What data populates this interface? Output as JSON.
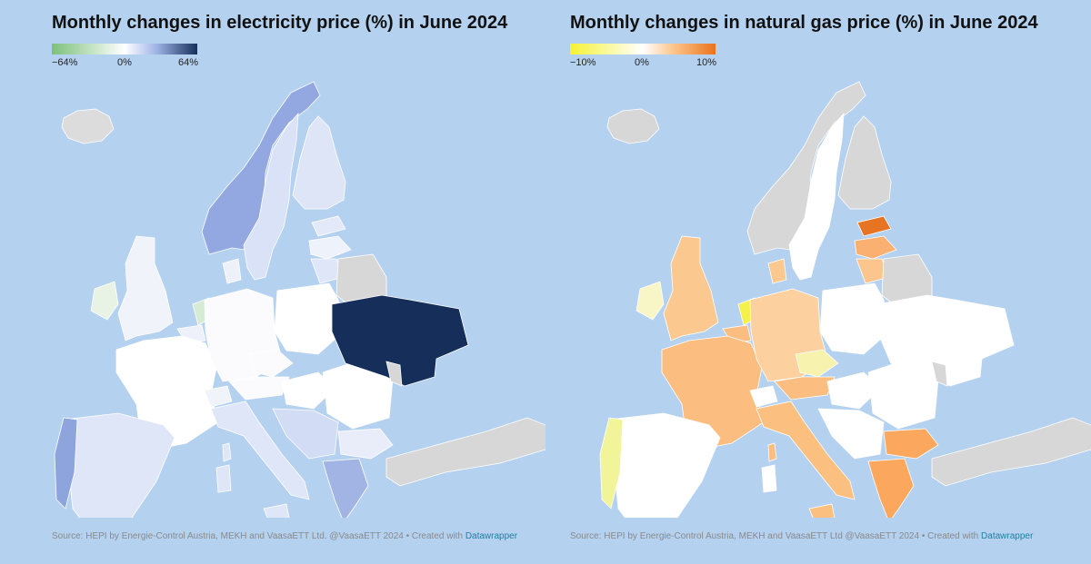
{
  "maps": [
    {
      "title": "Monthly changes in electricity price (%) in June 2024",
      "legend": {
        "min_label": "−64%",
        "mid_label": "0%",
        "max_label": "64%",
        "colors": [
          "#7cc07c",
          "#ffffff",
          "#9fb3e6",
          "#152f5a"
        ]
      },
      "source": "Source: HEPI by Energie-Control Austria, MEKH and VaasaETT Ltd. @VaasaETT 2024 • Created with",
      "source_link": "Datawrapper",
      "colors": {
        "iceland": "#dcdcdc",
        "norway": "#93a8e0",
        "sweden": "#d9e2f7",
        "finland": "#dde5f7",
        "estonia": "#e3e9f8",
        "latvia": "#eef2fb",
        "lithuania": "#dfe6f7",
        "belarus": "#d7d7d7",
        "ireland": "#e8f3e5",
        "uk": "#f1f3fb",
        "netherlands": "#d6ebd3",
        "belgium": "#eef1fa",
        "france": "#ffffff",
        "spain": "#dfe6f8",
        "portugal": "#8ea4dc",
        "germany": "#fbfbfe",
        "poland": "#ffffff",
        "czechia": "#fbfbfe",
        "austria": "#fbfbfe",
        "switzerland": "#f1f3fb",
        "italy": "#dfe6f8",
        "hungary": "#ffffff",
        "romania": "#ffffff",
        "bulgaria": "#e9edfa",
        "greece": "#a2b4e4",
        "balkans": "#d2dcf4",
        "ukraine": "#152f5a",
        "turkey": "#d7d7d7",
        "corsica": "#dfe6f8",
        "sardinia": "#dfe6f8",
        "sicily": "#dfe6f8",
        "crete": "#a2b4e4",
        "moldova": "#d7d7d7",
        "denmark": "#eef1fa"
      }
    },
    {
      "title": "Monthly changes in natural gas price (%) in June 2024",
      "legend": {
        "min_label": "−10%",
        "mid_label": "0%",
        "max_label": "10%",
        "colors": [
          "#f5f232",
          "#ffffff",
          "#fbc387",
          "#ea741c"
        ]
      },
      "source": "Source: HEPI by Energie-Control Austria, MEKH and VaasaETT Ltd @VaasaETT 2024 • Created with",
      "source_link": "Datawrapper",
      "colors": {
        "iceland": "#d7d7d7",
        "norway": "#d7d7d7",
        "sweden": "#ffffff",
        "finland": "#d7d7d7",
        "estonia": "#e77423",
        "latvia": "#fab070",
        "lithuania": "#fbc58d",
        "belarus": "#d7d7d7",
        "ireland": "#f8f6c6",
        "uk": "#fbc98f",
        "netherlands": "#f6f04a",
        "belgium": "#fbbd80",
        "france": "#fbbd80",
        "spain": "#ffffff",
        "portugal": "#f2f49a",
        "germany": "#fcd09f",
        "poland": "#ffffff",
        "czechia": "#f7f2ad",
        "austria": "#fbbd80",
        "switzerland": "#ffffff",
        "italy": "#fbc07f",
        "hungary": "#ffffff",
        "romania": "#ffffff",
        "bulgaria": "#fba85e",
        "greece": "#fba85e",
        "balkans": "#ffffff",
        "ukraine": "#ffffff",
        "turkey": "#d7d7d7",
        "corsica": "#fbbd80",
        "sardinia": "#ffffff",
        "sicily": "#fbc07f",
        "crete": "#fba85e",
        "moldova": "#d7d7d7",
        "denmark": "#fbc98f"
      }
    }
  ]
}
